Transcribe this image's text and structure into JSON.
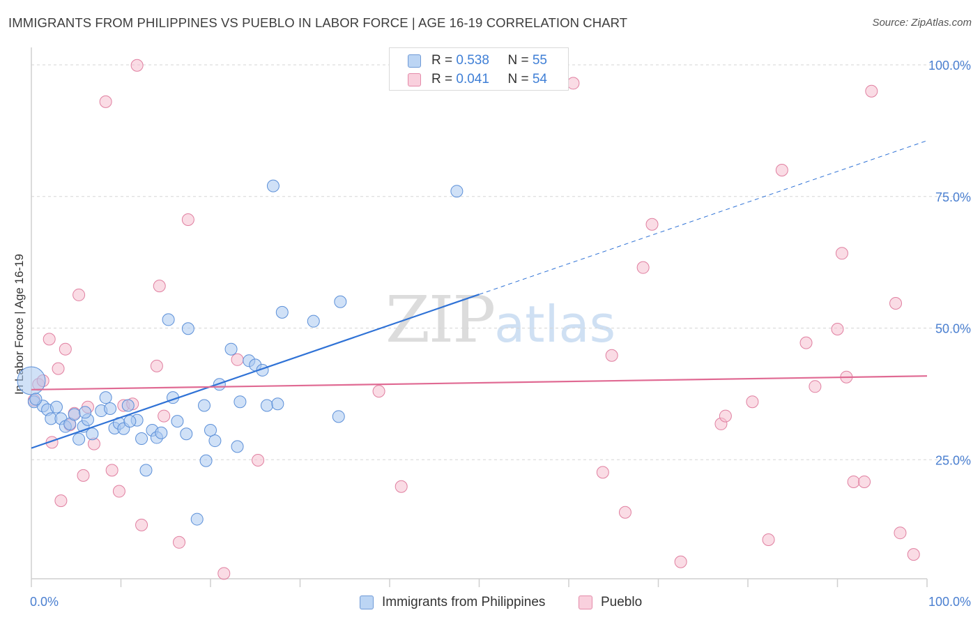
{
  "header": {
    "title": "IMMIGRANTS FROM PHILIPPINES VS PUEBLO IN LABOR FORCE | AGE 16-19 CORRELATION CHART",
    "source": "Source: ZipAtlas.com"
  },
  "watermark": {
    "zip": "ZIP",
    "atlas": "atlas"
  },
  "legend": {
    "series1": {
      "r_label": "R = ",
      "r_value": "0.538",
      "n_label": "N = ",
      "n_value": "55"
    },
    "series2": {
      "r_label": "R = ",
      "r_value": "0.041",
      "n_label": "N = ",
      "n_value": "54"
    }
  },
  "colors": {
    "blue_fill": "#a9c8f0",
    "blue_stroke": "#5b8fd8",
    "blue_line": "#2f72d6",
    "pink_fill": "#f6bfd0",
    "pink_stroke": "#e07fa0",
    "pink_line": "#e06a93",
    "tick_text": "#4a7fd0",
    "grid": "#d5d5d5"
  },
  "chart_data": {
    "type": "scatter",
    "title": "IMMIGRANTS FROM PHILIPPINES VS PUEBLO IN LABOR FORCE | AGE 16-19 CORRELATION CHART",
    "xlabel": "",
    "ylabel": "In Labor Force | Age 16-19",
    "xlim": [
      0,
      100
    ],
    "ylim": [
      0,
      100
    ],
    "x_tick_labels": [
      "0.0%",
      "100.0%"
    ],
    "y_tick_labels": [
      "25.0%",
      "50.0%",
      "75.0%",
      "100.0%"
    ],
    "y_ticks": [
      25,
      50,
      75,
      100
    ],
    "grid": true,
    "legend_position": "bottom",
    "series": [
      {
        "name": "Immigrants from Philippines",
        "color": "#5b8fd8",
        "regression": {
          "x": [
            0,
            50
          ],
          "y": [
            27.2,
            56.4
          ],
          "dashed_to": [
            100,
            85.6
          ]
        },
        "points": [
          [
            0.0,
            40.0
          ],
          [
            0.3,
            36.0
          ],
          [
            1.3,
            35.2
          ],
          [
            1.8,
            34.5
          ],
          [
            2.2,
            32.8
          ],
          [
            2.8,
            35.0
          ],
          [
            3.3,
            32.8
          ],
          [
            3.8,
            31.3
          ],
          [
            4.3,
            31.8
          ],
          [
            4.8,
            33.6
          ],
          [
            5.3,
            28.9
          ],
          [
            5.8,
            31.3
          ],
          [
            6.3,
            32.6
          ],
          [
            6.8,
            29.9
          ],
          [
            7.8,
            34.3
          ],
          [
            8.3,
            36.8
          ],
          [
            8.8,
            34.7
          ],
          [
            9.3,
            31.0
          ],
          [
            9.8,
            31.9
          ],
          [
            10.3,
            30.9
          ],
          [
            10.8,
            35.3
          ],
          [
            11.8,
            32.5
          ],
          [
            12.3,
            29.0
          ],
          [
            12.8,
            23.0
          ],
          [
            13.5,
            30.6
          ],
          [
            14.0,
            29.2
          ],
          [
            14.5,
            30.1
          ],
          [
            15.3,
            51.6
          ],
          [
            15.8,
            36.8
          ],
          [
            16.3,
            32.3
          ],
          [
            17.3,
            29.9
          ],
          [
            17.5,
            49.9
          ],
          [
            18.5,
            13.7
          ],
          [
            19.3,
            35.3
          ],
          [
            19.5,
            24.8
          ],
          [
            20.0,
            30.6
          ],
          [
            20.5,
            28.6
          ],
          [
            21.0,
            39.3
          ],
          [
            22.3,
            46.0
          ],
          [
            23.0,
            27.5
          ],
          [
            23.3,
            36.0
          ],
          [
            24.3,
            43.8
          ],
          [
            25.0,
            43.0
          ],
          [
            25.8,
            42.0
          ],
          [
            26.3,
            35.3
          ],
          [
            27.0,
            77.0
          ],
          [
            27.5,
            35.6
          ],
          [
            28.0,
            53.0
          ],
          [
            31.5,
            51.3
          ],
          [
            34.3,
            33.2
          ],
          [
            34.5,
            55.0
          ],
          [
            47.5,
            76.0
          ],
          [
            0.5,
            36.5
          ],
          [
            6.0,
            34.0
          ],
          [
            11.0,
            32.3
          ]
        ]
      },
      {
        "name": "Pueblo",
        "color": "#e07fa0",
        "regression": {
          "x": [
            0,
            100
          ],
          "y": [
            38.3,
            40.9
          ]
        },
        "points": [
          [
            0.3,
            36.3
          ],
          [
            0.8,
            39.3
          ],
          [
            1.3,
            40.0
          ],
          [
            2.0,
            47.9
          ],
          [
            2.3,
            28.3
          ],
          [
            3.0,
            42.3
          ],
          [
            3.3,
            17.2
          ],
          [
            3.8,
            46.0
          ],
          [
            4.3,
            31.6
          ],
          [
            4.8,
            33.8
          ],
          [
            5.3,
            56.3
          ],
          [
            5.8,
            22.0
          ],
          [
            6.3,
            35.0
          ],
          [
            7.0,
            28.0
          ],
          [
            8.3,
            93.0
          ],
          [
            9.0,
            23.0
          ],
          [
            9.8,
            19.0
          ],
          [
            10.3,
            35.3
          ],
          [
            11.3,
            35.6
          ],
          [
            11.8,
            99.9
          ],
          [
            12.3,
            12.6
          ],
          [
            14.0,
            42.8
          ],
          [
            14.3,
            58.0
          ],
          [
            14.8,
            33.3
          ],
          [
            16.5,
            9.3
          ],
          [
            17.5,
            70.6
          ],
          [
            21.5,
            3.4
          ],
          [
            23.0,
            44.0
          ],
          [
            25.3,
            24.9
          ],
          [
            38.8,
            38.0
          ],
          [
            41.3,
            19.9
          ],
          [
            60.5,
            96.5
          ],
          [
            63.8,
            22.6
          ],
          [
            64.8,
            44.8
          ],
          [
            66.3,
            15.0
          ],
          [
            68.3,
            61.5
          ],
          [
            69.3,
            69.7
          ],
          [
            72.5,
            5.6
          ],
          [
            77.0,
            31.8
          ],
          [
            77.5,
            33.3
          ],
          [
            80.5,
            36.0
          ],
          [
            82.3,
            9.8
          ],
          [
            83.8,
            80.0
          ],
          [
            86.5,
            47.2
          ],
          [
            87.5,
            38.9
          ],
          [
            90.0,
            49.8
          ],
          [
            90.5,
            64.2
          ],
          [
            91.0,
            40.7
          ],
          [
            91.8,
            20.8
          ],
          [
            93.0,
            20.8
          ],
          [
            93.8,
            95.0
          ],
          [
            96.5,
            54.7
          ],
          [
            97.0,
            11.1
          ],
          [
            98.5,
            7.0
          ]
        ]
      }
    ]
  },
  "bottom_legend": {
    "item1": "Immigrants from Philippines",
    "item2": "Pueblo"
  }
}
